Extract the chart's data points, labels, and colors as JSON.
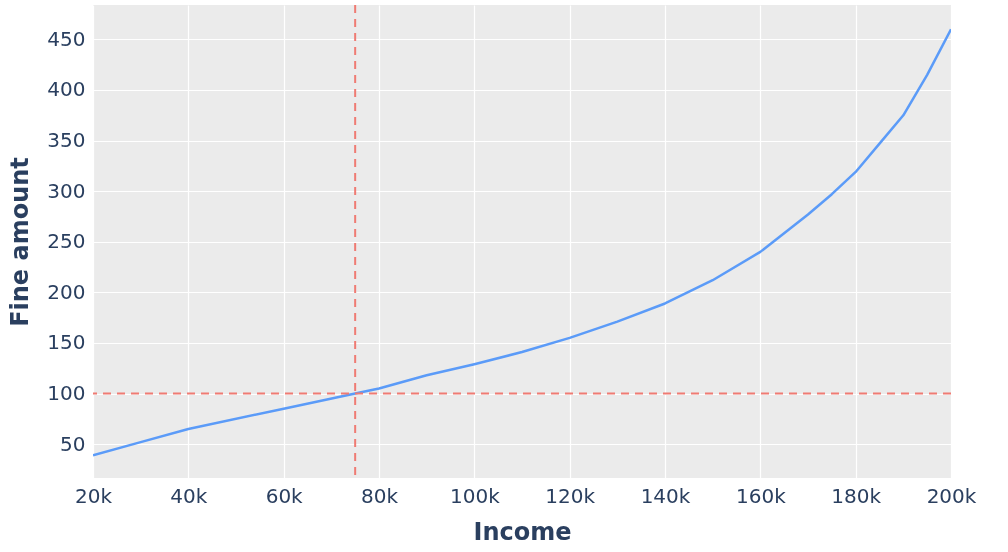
{
  "chart_data": {
    "type": "line",
    "xlabel": "Income",
    "ylabel": "Fine amount",
    "x": [
      20000,
      30000,
      40000,
      60000,
      75000,
      80000,
      90000,
      100000,
      110000,
      120000,
      130000,
      140000,
      150000,
      160000,
      170000,
      175000,
      180000,
      185000,
      190000,
      195000,
      200000
    ],
    "series": [
      {
        "color": "#5b9bf8",
        "values": [
          39,
          52,
          65,
          85,
          100,
          105,
          118,
          129,
          141,
          155,
          171,
          189,
          212,
          240,
          277,
          297,
          319,
          347,
          375,
          415,
          460
        ]
      }
    ],
    "xlim": [
      20000,
      200000
    ],
    "ylim": [
      16.5,
      484
    ],
    "xticks": [
      {
        "value": 20000,
        "label": "20k"
      },
      {
        "value": 40000,
        "label": "40k"
      },
      {
        "value": 60000,
        "label": "60k"
      },
      {
        "value": 80000,
        "label": "80k"
      },
      {
        "value": 100000,
        "label": "100k"
      },
      {
        "value": 120000,
        "label": "120k"
      },
      {
        "value": 140000,
        "label": "140k"
      },
      {
        "value": 160000,
        "label": "160k"
      },
      {
        "value": 180000,
        "label": "180k"
      },
      {
        "value": 200000,
        "label": "200k"
      }
    ],
    "yticks": [
      50,
      100,
      150,
      200,
      250,
      300,
      350,
      400,
      450
    ],
    "ref_lines": [
      {
        "axis": "x",
        "value": 75000,
        "color": "#ef7b73",
        "line_style": "dashed"
      },
      {
        "axis": "y",
        "value": 100,
        "color": "#ef7b73",
        "line_style": "dashed"
      }
    ],
    "grid": true,
    "line_style": "solid",
    "marker": "none"
  }
}
